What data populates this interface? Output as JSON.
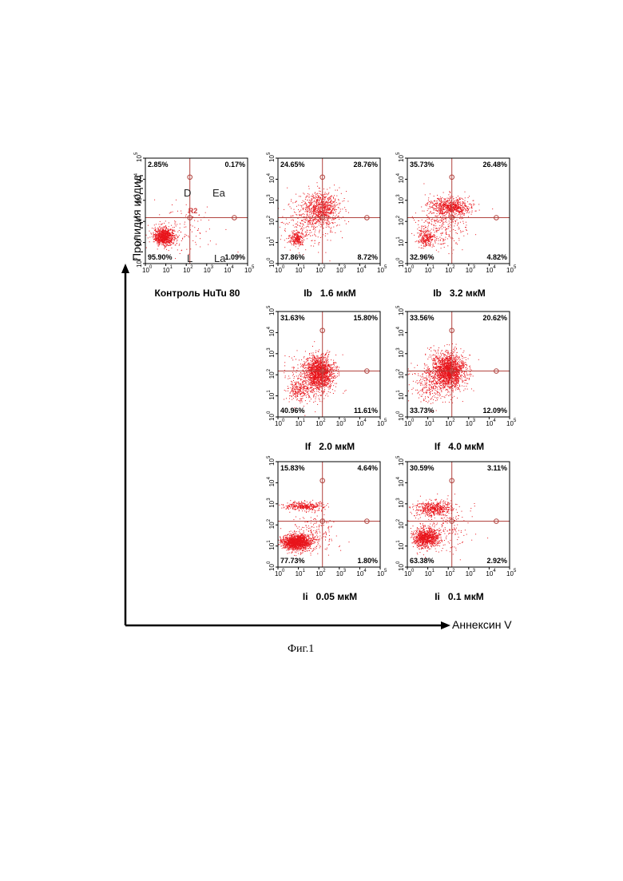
{
  "axes": {
    "y_label": "Пропидия иодид",
    "x_label": "Аннексин V"
  },
  "figure_caption": "Фиг.1",
  "colors": {
    "dots": "#e8141b",
    "gate_lines": "#b2443f",
    "frame": "#000000"
  },
  "chart_data": [
    {
      "type": "scatter",
      "caption": "Контроль HuTu 80",
      "xscale": "log",
      "yscale": "log",
      "xlim": [
        1,
        100000
      ],
      "ylim": [
        1,
        100000
      ],
      "gate": {
        "x": 150,
        "y": 150,
        "label": "R2"
      },
      "quadrant_letters": {
        "upper_left": "D",
        "upper_right": "Ea",
        "lower_left": "L",
        "lower_right": "La"
      },
      "quadrants": {
        "upper_left": "2.85%",
        "upper_right": "0.17%",
        "lower_left": "95.90%",
        "lower_right": "1.09%"
      },
      "ticks": [
        "10",
        "10",
        "10",
        "10",
        "10",
        "10"
      ],
      "tick_exponents": [
        "0",
        "1",
        "2",
        "3",
        "4",
        "5"
      ]
    },
    {
      "type": "scatter",
      "caption": "Ib   1.6 мкМ",
      "xscale": "log",
      "yscale": "log",
      "xlim": [
        1,
        100000
      ],
      "ylim": [
        1,
        100000
      ],
      "gate": {
        "x": 150,
        "y": 150
      },
      "quadrants": {
        "upper_left": "24.65%",
        "upper_right": "28.76%",
        "lower_left": "37.86%",
        "lower_right": "8.72%"
      },
      "ticks": [
        "10",
        "10",
        "10",
        "10",
        "10",
        "10"
      ],
      "tick_exponents": [
        "0",
        "1",
        "2",
        "3",
        "4",
        "5"
      ]
    },
    {
      "type": "scatter",
      "caption": "Ib   3.2 мкМ",
      "xscale": "log",
      "yscale": "log",
      "xlim": [
        1,
        100000
      ],
      "ylim": [
        1,
        100000
      ],
      "gate": {
        "x": 150,
        "y": 150
      },
      "quadrants": {
        "upper_left": "35.73%",
        "upper_right": "26.48%",
        "lower_left": "32.96%",
        "lower_right": "4.82%"
      },
      "ticks": [
        "10",
        "10",
        "10",
        "10",
        "10",
        "10"
      ],
      "tick_exponents": [
        "0",
        "1",
        "2",
        "3",
        "4",
        "5"
      ]
    },
    {
      "type": "scatter",
      "caption": "If   2.0 мкМ",
      "xscale": "log",
      "yscale": "log",
      "xlim": [
        1,
        100000
      ],
      "ylim": [
        1,
        100000
      ],
      "gate": {
        "x": 150,
        "y": 150
      },
      "quadrants": {
        "upper_left": "31.63%",
        "upper_right": "15.80%",
        "lower_left": "40.96%",
        "lower_right": "11.61%"
      },
      "ticks": [
        "10",
        "10",
        "10",
        "10",
        "10",
        "10"
      ],
      "tick_exponents": [
        "0",
        "1",
        "2",
        "3",
        "4",
        "5"
      ]
    },
    {
      "type": "scatter",
      "caption": "If   4.0 мкМ",
      "xscale": "log",
      "yscale": "log",
      "xlim": [
        1,
        100000
      ],
      "ylim": [
        1,
        100000
      ],
      "gate": {
        "x": 150,
        "y": 150
      },
      "quadrants": {
        "upper_left": "33.56%",
        "upper_right": "20.62%",
        "lower_left": "33.73%",
        "lower_right": "12.09%"
      },
      "ticks": [
        "10",
        "10",
        "10",
        "10",
        "10",
        "10"
      ],
      "tick_exponents": [
        "0",
        "1",
        "2",
        "3",
        "4",
        "5"
      ]
    },
    {
      "type": "scatter",
      "caption": "Ii   0.05 мкМ",
      "xscale": "log",
      "yscale": "log",
      "xlim": [
        1,
        100000
      ],
      "ylim": [
        1,
        100000
      ],
      "gate": {
        "x": 150,
        "y": 150
      },
      "quadrants": {
        "upper_left": "15.83%",
        "upper_right": "4.64%",
        "lower_left": "77.73%",
        "lower_right": "1.80%"
      },
      "ticks": [
        "10",
        "10",
        "10",
        "10",
        "10",
        "10"
      ],
      "tick_exponents": [
        "0",
        "1",
        "2",
        "3",
        "4",
        "5"
      ]
    },
    {
      "type": "scatter",
      "caption": "Ii   0.1 мкМ",
      "xscale": "log",
      "yscale": "log",
      "xlim": [
        1,
        100000
      ],
      "ylim": [
        1,
        100000
      ],
      "gate": {
        "x": 150,
        "y": 150
      },
      "quadrants": {
        "upper_left": "30.59%",
        "upper_right": "3.11%",
        "lower_left": "63.38%",
        "lower_right": "2.92%"
      },
      "ticks": [
        "10",
        "10",
        "10",
        "10",
        "10",
        "10"
      ],
      "tick_exponents": [
        "0",
        "1",
        "2",
        "3",
        "4",
        "5"
      ]
    }
  ]
}
